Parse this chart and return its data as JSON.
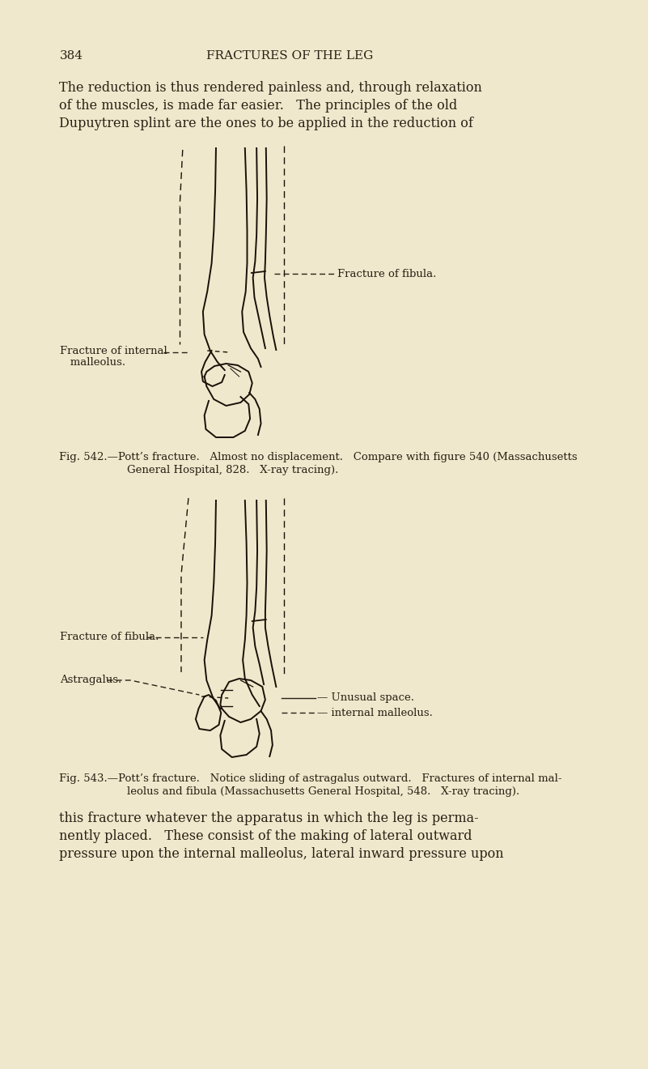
{
  "bg_color": "#f0e8cc",
  "text_color": "#2a2015",
  "page_number": "384",
  "header": "FRACTURES OF THE LEG",
  "para1_lines": [
    "The reduction is thus rendered painless and, through relaxation",
    "of the muscles, is made far easier.   The principles of the old",
    "Dupuytren splint are the ones to be applied in the reduction of"
  ],
  "fig542_caption_line1": "Fig. 542.—Pott’s fracture.   Almost no displacement.   Compare with figure 540 (Massachusetts",
  "fig542_caption_line2": "General Hospital, 828.   X-ray tracing).",
  "fig543_caption_line1": "Fig. 543.—Pott’s fracture.   Notice sliding of astragalus outward.   Fractures of internal mal-",
  "fig543_caption_line2": "leolus and fibula (Massachusetts General Hospital, 548.   X-ray tracing).",
  "para2_lines": [
    "this fracture whatever the apparatus in which the leg is perma-",
    "nently placed.   These consist of the making of lateral outward",
    "pressure upon the internal malleolus, lateral inward pressure upon"
  ],
  "label_fracture_fibula": "Fracture of fibula.",
  "label_fracture_internal_1": "Fracture of internal",
  "label_fracture_internal_2": "   malleolus.",
  "label_fracture_fibula2": "Fracture of fibula.",
  "label_astragalus": "Astragalus.",
  "label_unusual_space": "— Unusual space.",
  "label_internal_malleolus": "— internal malleolus.",
  "draw_color": "#1a1008"
}
